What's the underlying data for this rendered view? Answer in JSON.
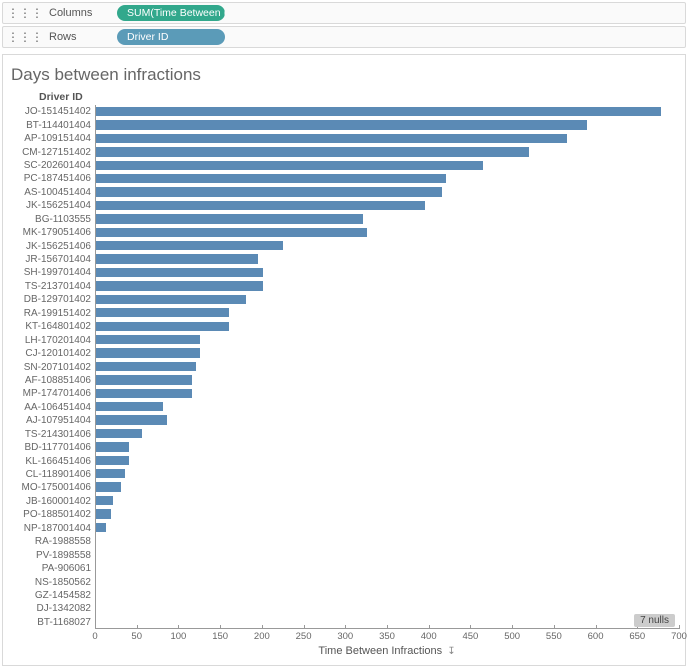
{
  "shelves": {
    "columns_label": "Columns",
    "rows_label": "Rows",
    "columns_pill": "SUM(Time Between I..",
    "rows_pill": "Driver ID"
  },
  "chart": {
    "type": "bar",
    "orientation": "horizontal",
    "title": "Days between infractions",
    "y_axis_title": "Driver ID",
    "x_axis_title": "Time Between Infractions",
    "bar_color": "#5b8ab5",
    "background_color": "#ffffff",
    "axis_color": "#999999",
    "title_color": "#666666",
    "title_fontsize": 17,
    "label_fontsize": 10,
    "xlim": [
      0,
      700
    ],
    "xtick_step": 50,
    "xticks": [
      0,
      50,
      100,
      150,
      200,
      250,
      300,
      350,
      400,
      450,
      500,
      550,
      600,
      650,
      700
    ],
    "categories": [
      "JO-151451402",
      "BT-114401404",
      "AP-109151404",
      "CM-127151402",
      "SC-202601404",
      "PC-187451406",
      "AS-100451404",
      "JK-156251404",
      "BG-1103555",
      "MK-179051406",
      "JK-156251406",
      "JR-156701404",
      "SH-199701404",
      "TS-213701404",
      "DB-129701402",
      "RA-199151402",
      "KT-164801402",
      "LH-170201404",
      "CJ-120101402",
      "SN-207101402",
      "AF-108851406",
      "MP-174701406",
      "AA-106451404",
      "AJ-107951404",
      "TS-214301406",
      "BD-117701406",
      "KL-166451406",
      "CL-118901406",
      "MO-175001406",
      "JB-160001402",
      "PO-188501402",
      "NP-187001404",
      "RA-1988558",
      "PV-1898558",
      "PA-906061",
      "NS-1850562",
      "GZ-1454582",
      "DJ-1342082",
      "BT-1168027"
    ],
    "values": [
      678,
      590,
      565,
      520,
      465,
      420,
      415,
      395,
      320,
      325,
      225,
      195,
      200,
      200,
      180,
      160,
      160,
      125,
      125,
      120,
      115,
      115,
      80,
      85,
      55,
      40,
      40,
      35,
      30,
      20,
      18,
      12,
      0,
      0,
      0,
      0,
      0,
      0,
      0
    ],
    "nulls_badge": "7 nulls",
    "sort_indicator": "↧"
  }
}
